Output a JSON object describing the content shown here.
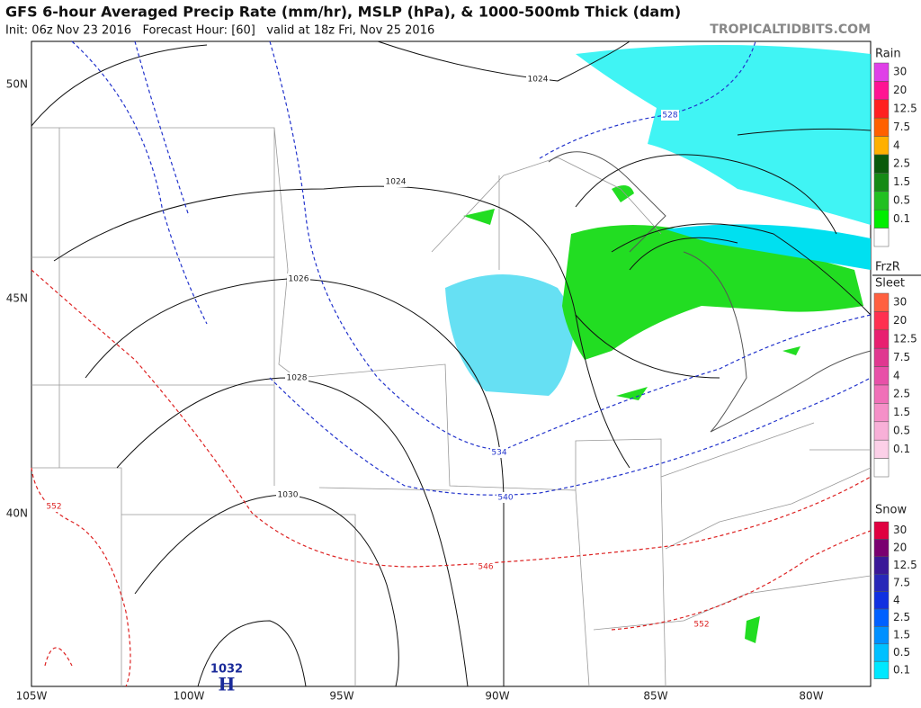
{
  "header": {
    "title": "GFS 6-hour Averaged Precip Rate (mm/hr), MSLP (hPa), & 1000-500mb Thick (dam)",
    "subtitle": "Init: 06z Nov 23 2016   Forecast Hour: [60]   valid at 18z Fri, Nov 25 2016",
    "site": "TROPICALTIDBITS.COM"
  },
  "map": {
    "lat_labels": [
      "50N",
      "45N",
      "40N"
    ],
    "lon_labels": [
      "105W",
      "100W",
      "95W",
      "90W",
      "85W",
      "80W"
    ],
    "isobar_labels": [
      "1024",
      "1024",
      "1026",
      "1028",
      "1030"
    ],
    "thickness_labels": [
      "528",
      "534",
      "540",
      "546",
      "552",
      "552"
    ],
    "high": {
      "value": "1032",
      "symbol": "H"
    }
  },
  "legend": [
    {
      "title": [
        "Rain"
      ],
      "items": [
        {
          "label": "30",
          "color": "#e040e8"
        },
        {
          "label": "20",
          "color": "#ff1493"
        },
        {
          "label": "12.5",
          "color": "#ff2020"
        },
        {
          "label": "7.5",
          "color": "#ff6000"
        },
        {
          "label": "4",
          "color": "#ffb000"
        },
        {
          "label": "2.5",
          "color": "#0a5a0a"
        },
        {
          "label": "1.5",
          "color": "#158a15"
        },
        {
          "label": "0.5",
          "color": "#22c022"
        },
        {
          "label": "0.1",
          "color": "#00ee00"
        },
        {
          "label": "",
          "color": "#ffffff"
        }
      ]
    },
    {
      "title": [
        "FrzR",
        "Sleet"
      ],
      "items": [
        {
          "label": "30",
          "color": "#ff6040"
        },
        {
          "label": "20",
          "color": "#ff3050"
        },
        {
          "label": "12.5",
          "color": "#e82070"
        },
        {
          "label": "7.5",
          "color": "#e03890"
        },
        {
          "label": "4",
          "color": "#e850a8"
        },
        {
          "label": "2.5",
          "color": "#f070b8"
        },
        {
          "label": "1.5",
          "color": "#f590c8"
        },
        {
          "label": "0.5",
          "color": "#f8b0d8"
        },
        {
          "label": "0.1",
          "color": "#fcd0e8"
        },
        {
          "label": "",
          "color": "#ffffff"
        }
      ]
    },
    {
      "title": [
        "Snow"
      ],
      "items": [
        {
          "label": "30",
          "color": "#e00040"
        },
        {
          "label": "20",
          "color": "#7a0070"
        },
        {
          "label": "12.5",
          "color": "#3a1898"
        },
        {
          "label": "7.5",
          "color": "#2828b8"
        },
        {
          "label": "4",
          "color": "#1030e0"
        },
        {
          "label": "2.5",
          "color": "#0060ff"
        },
        {
          "label": "1.5",
          "color": "#0090ff"
        },
        {
          "label": "0.5",
          "color": "#00c0ff"
        },
        {
          "label": "0.1",
          "color": "#00e8ff"
        }
      ]
    }
  ]
}
